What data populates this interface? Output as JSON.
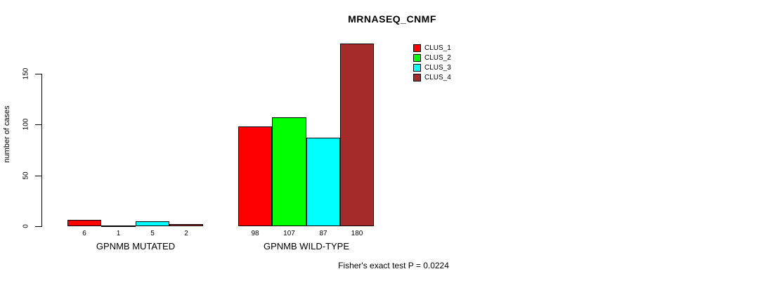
{
  "chart": {
    "title": "MRNASEQ_CNMF",
    "ylabel": "number of cases",
    "annotation": "Fisher's exact test P = 0.0224"
  },
  "chart_data": {
    "type": "bar",
    "title": "MRNASEQ_CNMF",
    "xlabel": "",
    "ylabel": "number of cases",
    "categories": [
      "GPNMB MUTATED",
      "GPNMB WILD-TYPE"
    ],
    "series": [
      {
        "name": "CLUS_1",
        "color": "#ff0000",
        "values": [
          6,
          98
        ]
      },
      {
        "name": "CLUS_2",
        "color": "#00ff00",
        "values": [
          1,
          107
        ]
      },
      {
        "name": "CLUS_3",
        "color": "#00ffff",
        "values": [
          5,
          87
        ]
      },
      {
        "name": "CLUS_4",
        "color": "#a52a2a",
        "values": [
          2,
          180
        ]
      }
    ],
    "bar_value_labels": [
      [
        6,
        1,
        5,
        2
      ],
      [
        98,
        107,
        87,
        180
      ]
    ],
    "yticks": [
      0,
      50,
      100,
      150
    ],
    "ylim": [
      0,
      180
    ],
    "grid": false,
    "legend_position": "top-right",
    "annotation": "Fisher's exact test P = 0.0224"
  }
}
